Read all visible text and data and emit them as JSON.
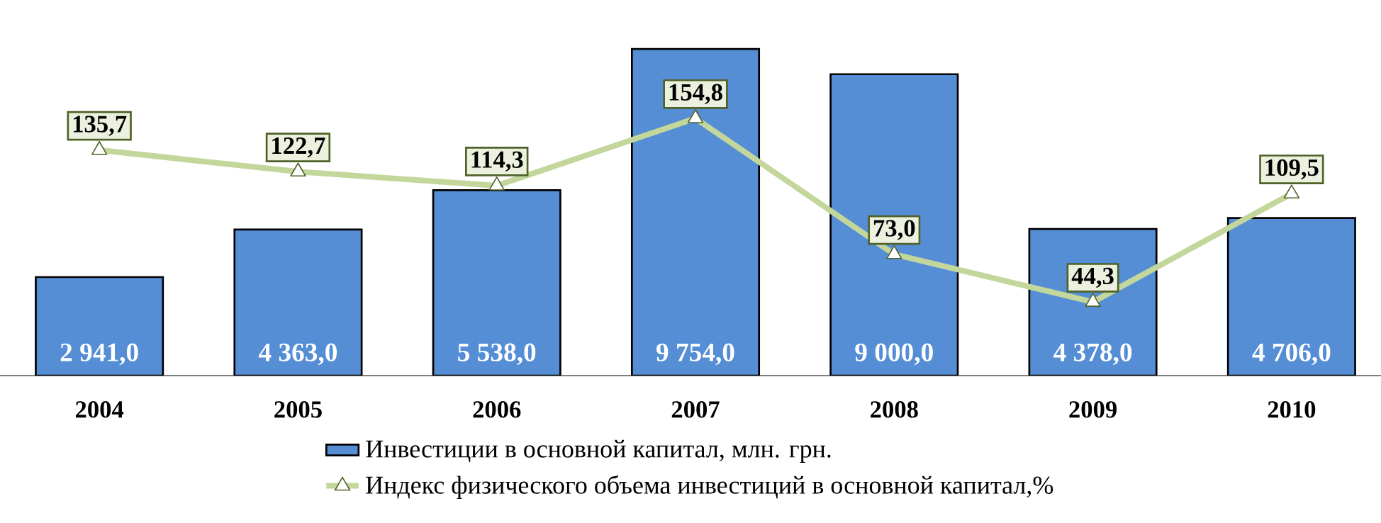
{
  "chart_data": {
    "type": "bar",
    "categories": [
      "2004",
      "2005",
      "2006",
      "2007",
      "2008",
      "2009",
      "2010"
    ],
    "series": [
      {
        "name": "Инвестиции в основной капитал, млн. грн.",
        "color": "#558ed5",
        "values": [
          2941.0,
          4363.0,
          5538.0,
          9754.0,
          9000.0,
          4378.0,
          4706.0
        ],
        "value_labels": [
          "2 941,0",
          "4 363,0",
          "5 538,0",
          "9 754,0",
          "9 000,0",
          "4 378,0",
          "4 706,0"
        ]
      },
      {
        "name": "Индекс физического объема инвестиций в основной капитал,%",
        "type": "line",
        "axis": "y2",
        "color": "#c3d69b",
        "values": [
          135.7,
          122.7,
          114.3,
          154.8,
          73.0,
          44.3,
          109.5
        ],
        "value_labels": [
          "135,7",
          "122,7",
          "114,3",
          "154,8",
          "73,0",
          "44,3",
          "109,5"
        ]
      }
    ],
    "tick_labels": "x",
    "legend": "bottom",
    "marker": "triangle",
    "line_style": "solid"
  }
}
